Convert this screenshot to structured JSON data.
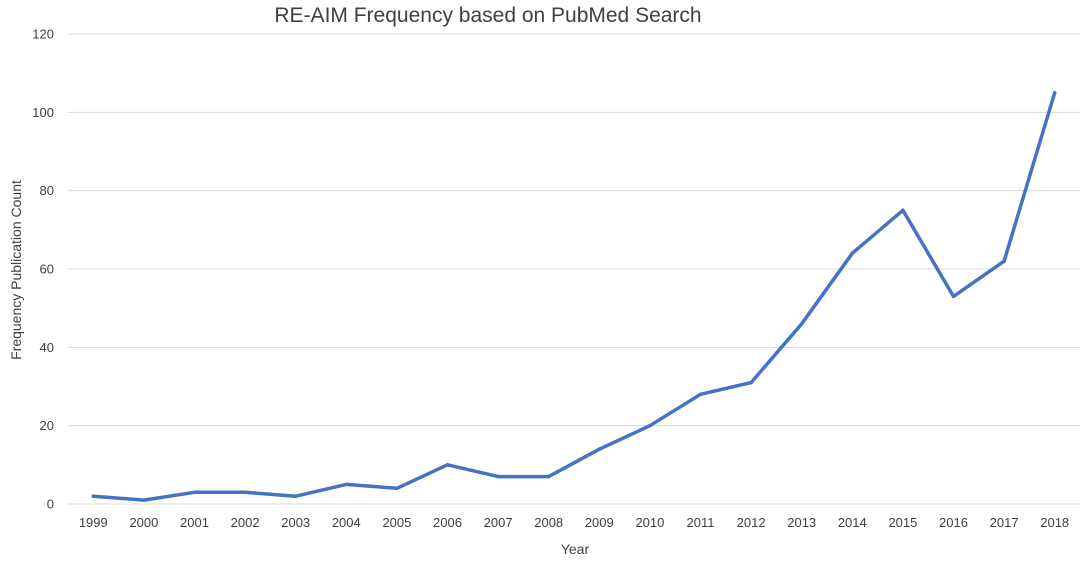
{
  "chart_data": {
    "type": "line",
    "title": "RE-AIM Frequency based on PubMed Search",
    "xlabel": "Year",
    "ylabel": "Frequency Publication Count",
    "x": [
      "1999",
      "2000",
      "2001",
      "2002",
      "2003",
      "2004",
      "2005",
      "2006",
      "2007",
      "2008",
      "2009",
      "2010",
      "2011",
      "2012",
      "2013",
      "2014",
      "2015",
      "2016",
      "2017",
      "2018"
    ],
    "series": [
      {
        "values": [
          2,
          1,
          3,
          3,
          2,
          5,
          4,
          10,
          7,
          7,
          14,
          20,
          28,
          31,
          46,
          64,
          75,
          53,
          62,
          105
        ]
      }
    ],
    "yticks": [
      "0",
      "20",
      "40",
      "60",
      "80",
      "100",
      "120"
    ],
    "ylim": [
      0,
      120
    ],
    "grid": true,
    "legend": "none",
    "line_color": "#4472c4"
  }
}
